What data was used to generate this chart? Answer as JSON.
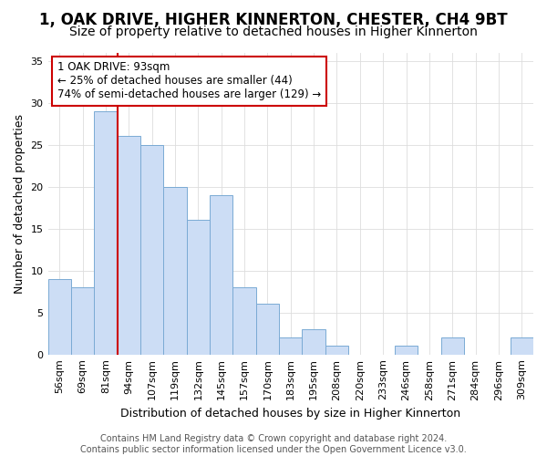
{
  "title": "1, OAK DRIVE, HIGHER KINNERTON, CHESTER, CH4 9BT",
  "subtitle": "Size of property relative to detached houses in Higher Kinnerton",
  "xlabel": "Distribution of detached houses by size in Higher Kinnerton",
  "ylabel": "Number of detached properties",
  "categories": [
    "56sqm",
    "69sqm",
    "81sqm",
    "94sqm",
    "107sqm",
    "119sqm",
    "132sqm",
    "145sqm",
    "157sqm",
    "170sqm",
    "183sqm",
    "195sqm",
    "208sqm",
    "220sqm",
    "233sqm",
    "246sqm",
    "258sqm",
    "271sqm",
    "284sqm",
    "296sqm",
    "309sqm"
  ],
  "values": [
    9,
    8,
    29,
    26,
    25,
    20,
    16,
    19,
    8,
    6,
    2,
    3,
    1,
    0,
    0,
    1,
    0,
    2,
    0,
    0,
    2
  ],
  "bar_color": "#ccddf5",
  "bar_edge_color": "#7aaad4",
  "vline_color": "#cc0000",
  "annotation_line1": "1 OAK DRIVE: 93sqm",
  "annotation_line2": "← 25% of detached houses are smaller (44)",
  "annotation_line3": "74% of semi-detached houses are larger (129) →",
  "annotation_box_facecolor": "#ffffff",
  "annotation_box_edgecolor": "#cc0000",
  "ylim": [
    0,
    36
  ],
  "yticks": [
    0,
    5,
    10,
    15,
    20,
    25,
    30,
    35
  ],
  "footnote_line1": "Contains HM Land Registry data © Crown copyright and database right 2024.",
  "footnote_line2": "Contains public sector information licensed under the Open Government Licence v3.0.",
  "bg_color": "#ffffff",
  "plot_bg_color": "#ffffff",
  "grid_color": "#dddddd",
  "title_fontsize": 12,
  "subtitle_fontsize": 10,
  "axis_label_fontsize": 9,
  "tick_fontsize": 8,
  "footnote_fontsize": 7,
  "annotation_fontsize": 8.5
}
